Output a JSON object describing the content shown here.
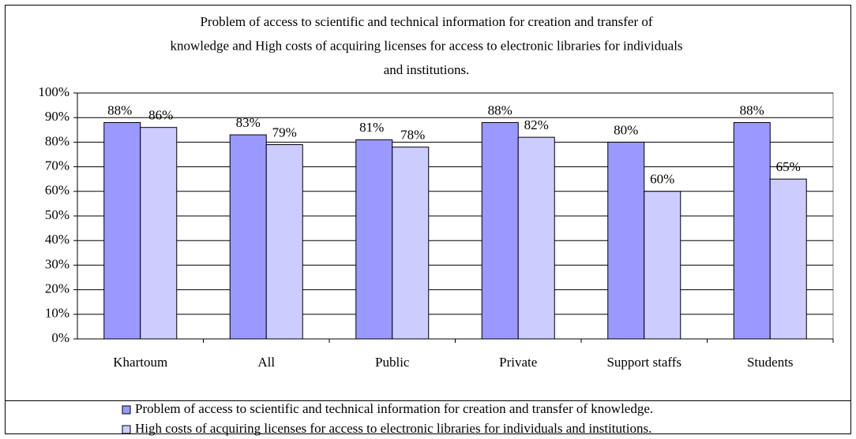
{
  "chart_data": {
    "type": "bar",
    "title": [
      "Problem of access to scientific and technical information for creation and transfer of",
      "knowledge and High costs of acquiring licenses for access to electronic libraries for individuals",
      "and institutions."
    ],
    "categories": [
      "Khartoum",
      "All",
      "Public",
      "Private",
      "Support staffs",
      "Students"
    ],
    "series": [
      {
        "name": "Problem of access to scientific and technical information for creation and transfer of knowledge.",
        "color": "#9999ff",
        "values": [
          88,
          83,
          81,
          88,
          80,
          88
        ],
        "value_labels": [
          "88%",
          "83%",
          "81%",
          "88%",
          "80%",
          "88%"
        ]
      },
      {
        "name": "High costs of acquiring licenses for access to electronic libraries for individuals and institutions.",
        "color": "#ccccff",
        "values": [
          86,
          79,
          78,
          82,
          60,
          65
        ],
        "value_labels": [
          "86%",
          "79%",
          "78%",
          "82%",
          "60%",
          "65%"
        ]
      }
    ],
    "ylim": [
      0,
      100
    ],
    "yticks": [
      {
        "value": 0,
        "label": "0%"
      },
      {
        "value": 10,
        "label": "10%"
      },
      {
        "value": 20,
        "label": "20%"
      },
      {
        "value": 30,
        "label": "30%"
      },
      {
        "value": 40,
        "label": "40%"
      },
      {
        "value": 50,
        "label": "50%"
      },
      {
        "value": 60,
        "label": "60%"
      },
      {
        "value": 70,
        "label": "70%"
      },
      {
        "value": 80,
        "label": "80%"
      },
      {
        "value": 90,
        "label": "90%"
      },
      {
        "value": 100,
        "label": "100%"
      }
    ],
    "grid": true,
    "legend": "bottom"
  }
}
